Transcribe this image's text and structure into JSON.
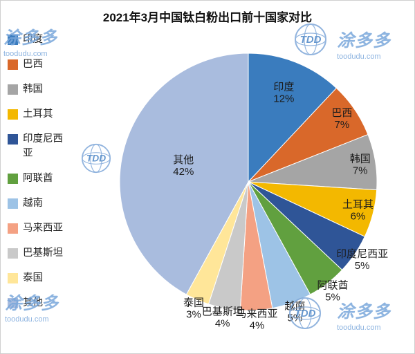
{
  "title": "2021年3月中国钛白粉出口前十国家对比",
  "watermark": {
    "brand": "涂多多",
    "site": "toodudu.com",
    "logo_text": "TDD"
  },
  "chart_data": {
    "type": "pie",
    "title": "2021年3月中国钛白粉出口前十国家对比",
    "unit": "percent",
    "legend_position": "left",
    "start_angle_deg": 0,
    "direction": "clockwise",
    "slices": [
      {
        "label": "印度",
        "value": 12,
        "color": "#3A7CBE"
      },
      {
        "label": "巴西",
        "value": 7,
        "color": "#D9682A"
      },
      {
        "label": "韩国",
        "value": 7,
        "color": "#A5A5A5"
      },
      {
        "label": "土耳其",
        "value": 6,
        "color": "#F3B800"
      },
      {
        "label": "印度尼西亚",
        "value": 5,
        "color": "#2F5597"
      },
      {
        "label": "阿联酋",
        "value": 5,
        "color": "#61A03F"
      },
      {
        "label": "越南",
        "value": 5,
        "color": "#9DC3E6"
      },
      {
        "label": "马来西亚",
        "value": 4,
        "color": "#F4A183"
      },
      {
        "label": "巴基斯坦",
        "value": 4,
        "color": "#C9C9C9"
      },
      {
        "label": "泰国",
        "value": 3,
        "color": "#FFE699"
      },
      {
        "label": "其他",
        "value": 42,
        "color": "#A9BCDE"
      }
    ]
  }
}
